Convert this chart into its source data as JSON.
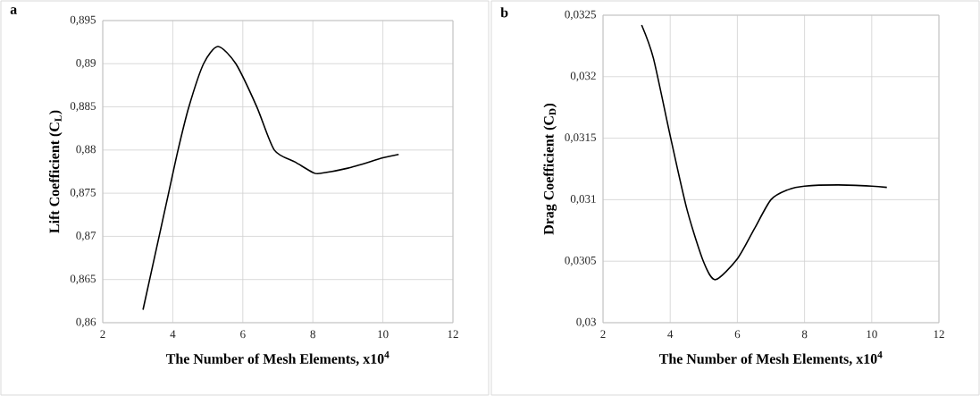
{
  "chart_data": [
    {
      "type": "line",
      "xlabel": "The Number of Mesh Elements, x10$^{4}$",
      "ylabel": "Lift Coefficient (C$_{L}$)",
      "annotations": [
        "a"
      ],
      "series": [
        {
          "color": "#000000",
          "x": [
            3.15,
            3.61,
            3.88,
            4.15,
            4.46,
            4.88,
            5.29,
            5.8,
            6.4,
            6.9,
            7.5,
            8.0,
            8.2,
            9.0,
            10.0,
            10.45
          ],
          "values": [
            0.8615,
            0.87,
            0.875,
            0.88,
            0.885,
            0.89,
            0.892,
            0.89,
            0.885,
            0.88,
            0.8786,
            0.8774,
            0.8773,
            0.8779,
            0.8791,
            0.8795
          ]
        }
      ],
      "xlim": [
        2,
        12
      ],
      "xticks": [
        2,
        4,
        6,
        8,
        10,
        12
      ],
      "ylim": [
        0.86,
        0.895
      ],
      "yticks": [
        {
          "value": 0.86,
          "label": "0,86"
        },
        {
          "value": 0.865,
          "label": "0,865"
        },
        {
          "value": 0.87,
          "label": "0,87"
        },
        {
          "value": 0.875,
          "label": "0,875"
        },
        {
          "value": 0.88,
          "label": "0,88"
        },
        {
          "value": 0.885,
          "label": "0,885"
        },
        {
          "value": 0.89,
          "label": "0,89"
        },
        {
          "value": 0.895,
          "label": "0,895"
        }
      ],
      "grid": true,
      "line_style": "solid"
    },
    {
      "type": "line",
      "xlabel": "The Number of Mesh Elements, x10$^{4}$",
      "ylabel": "Drag Coefficient (C$_{D}$)",
      "annotations": [
        "b"
      ],
      "series": [
        {
          "color": "#000000",
          "x": [
            3.15,
            3.5,
            4.0,
            4.5,
            5.0,
            5.35,
            6.0,
            6.5,
            7.0,
            7.5,
            8.0,
            9.0,
            10.0,
            10.45
          ],
          "values": [
            0.03242,
            0.03215,
            0.03152,
            0.03092,
            0.03049,
            0.03035,
            0.03052,
            0.03076,
            0.031,
            0.03108,
            0.03111,
            0.03112,
            0.03111,
            0.0311
          ]
        }
      ],
      "xlim": [
        2,
        12
      ],
      "xticks": [
        2,
        4,
        6,
        8,
        10,
        12
      ],
      "ylim": [
        0.03,
        0.0325
      ],
      "yticks": [
        {
          "value": 0.03,
          "label": "0,03"
        },
        {
          "value": 0.0305,
          "label": "0,0305"
        },
        {
          "value": 0.031,
          "label": "0,031"
        },
        {
          "value": 0.0315,
          "label": "0,0315"
        },
        {
          "value": 0.032,
          "label": "0,032"
        },
        {
          "value": 0.0325,
          "label": "0,0325"
        }
      ],
      "grid": true,
      "line_style": "solid"
    }
  ]
}
